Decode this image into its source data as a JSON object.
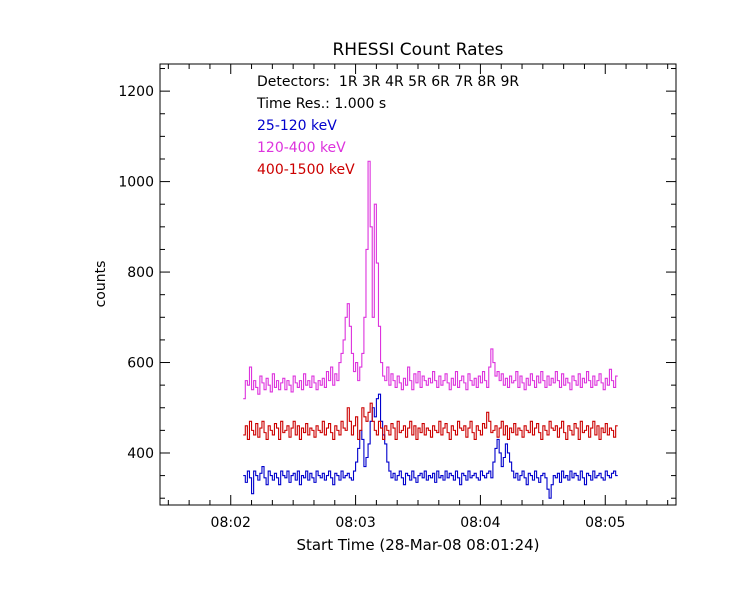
{
  "chart_data": {
    "type": "line",
    "title": "RHESSI Count Rates",
    "xlabel": "Start Time (28-Mar-08 08:01:24)",
    "ylabel": "counts",
    "x_ticks": [
      "08:02",
      "08:03",
      "08:04",
      "08:05"
    ],
    "y_ticks": [
      "400",
      "600",
      "800",
      "1000",
      "1200"
    ],
    "xlim_seconds_after_08_00": [
      86,
      334
    ],
    "ylim": [
      285,
      1260
    ],
    "grid": false,
    "legend_position": "top-left",
    "legend": [
      {
        "text": "Detectors:  1R 3R 4R 5R 6R 7R 8R 9R",
        "color": "#000000"
      },
      {
        "text": "Time Res.: 1.000 s",
        "color": "#000000"
      },
      {
        "text": "25-120 keV",
        "color": "#0000cc"
      },
      {
        "text": "120-400 keV",
        "color": "#dd33dd"
      },
      {
        "text": "400-1500 keV",
        "color": "#cc0000"
      }
    ],
    "series": [
      {
        "name": "25-120 keV",
        "color": "#0000cc",
        "x_start": 126,
        "x_step": 1.0,
        "values": [
          350,
          335,
          360,
          345,
          310,
          360,
          350,
          340,
          355,
          370,
          345,
          330,
          360,
          350,
          340,
          355,
          345,
          330,
          360,
          350,
          345,
          360,
          335,
          350,
          355,
          340,
          360,
          330,
          350,
          345,
          360,
          340,
          355,
          345,
          335,
          360,
          350,
          345,
          355,
          340,
          350,
          360,
          345,
          330,
          355,
          350,
          340,
          360,
          345,
          350,
          355,
          345,
          340,
          360,
          380,
          410,
          450,
          430,
          370,
          390,
          420,
          470,
          500,
          480,
          520,
          530,
          470,
          440,
          420,
          380,
          360,
          345,
          355,
          340,
          350,
          360,
          345,
          330,
          355,
          350,
          340,
          360,
          345,
          335,
          350,
          355,
          345,
          360,
          340,
          350,
          345,
          355,
          335,
          360,
          345,
          350,
          340,
          360,
          345,
          355,
          350,
          340,
          360,
          345,
          330,
          355,
          350,
          340,
          360,
          345,
          350,
          355,
          345,
          340,
          360,
          350,
          345,
          355,
          360,
          345,
          380,
          410,
          430,
          400,
          370,
          390,
          420,
          400,
          380,
          360,
          345,
          355,
          340,
          350,
          360,
          345,
          330,
          355,
          350,
          340,
          360,
          345,
          335,
          350,
          355,
          345,
          320,
          300,
          330,
          350,
          345,
          355,
          335,
          360,
          345,
          350,
          340,
          360,
          345,
          355,
          350,
          340,
          360,
          345,
          330,
          355,
          350,
          340,
          360,
          345,
          350,
          355,
          345,
          340,
          360,
          350,
          345,
          355,
          360,
          350
        ]
      },
      {
        "name": "120-400 keV",
        "color": "#dd33dd",
        "x_start": 126,
        "x_step": 1.0,
        "values": [
          520,
          560,
          550,
          590,
          540,
          560,
          545,
          530,
          570,
          555,
          540,
          565,
          550,
          535,
          575,
          545,
          560,
          540,
          555,
          565,
          540,
          560,
          550,
          535,
          570,
          555,
          545,
          560,
          540,
          575,
          550,
          560,
          545,
          570,
          555,
          540,
          560,
          550,
          565,
          545,
          580,
          560,
          590,
          550,
          575,
          560,
          600,
          620,
          650,
          700,
          730,
          680,
          620,
          580,
          600,
          560,
          590,
          620,
          700,
          850,
          1045,
          900,
          700,
          950,
          820,
          680,
          600,
          570,
          560,
          590,
          550,
          575,
          560,
          545,
          570,
          555,
          540,
          565,
          550,
          590,
          560,
          540,
          575,
          555,
          580,
          545,
          570,
          560,
          550,
          565,
          555,
          580,
          560,
          545,
          570,
          550,
          560,
          575,
          555,
          540,
          565,
          550,
          580,
          545,
          560,
          570,
          555,
          540,
          575,
          560,
          550,
          565,
          545,
          570,
          555,
          580,
          560,
          545,
          590,
          630,
          600,
          570,
          580,
          560,
          575,
          550,
          565,
          545,
          570,
          555,
          560,
          580,
          545,
          570,
          555,
          540,
          565,
          550,
          575,
          560,
          545,
          570,
          555,
          580,
          560,
          545,
          570,
          550,
          565,
          555,
          580,
          560,
          545,
          575,
          550,
          565,
          555,
          540,
          570,
          560,
          550,
          575,
          545,
          565,
          555,
          580,
          560,
          545,
          570,
          550,
          560,
          575,
          555,
          540,
          565,
          550,
          585,
          560,
          545,
          570
        ]
      },
      {
        "name": "400-1500 keV",
        "color": "#cc0000",
        "x_start": 126,
        "x_step": 1.0,
        "values": [
          440,
          460,
          430,
          470,
          450,
          440,
          465,
          435,
          455,
          470,
          445,
          430,
          460,
          450,
          440,
          465,
          455,
          430,
          470,
          445,
          450,
          460,
          435,
          455,
          470,
          440,
          460,
          430,
          455,
          445,
          465,
          440,
          455,
          450,
          435,
          460,
          450,
          445,
          470,
          440,
          455,
          465,
          445,
          430,
          460,
          450,
          440,
          470,
          455,
          450,
          500,
          470,
          440,
          460,
          480,
          430,
          450,
          500,
          480,
          470,
          490,
          510,
          470,
          450,
          440,
          470,
          455,
          430,
          460,
          450,
          440,
          465,
          455,
          430,
          470,
          445,
          450,
          460,
          435,
          455,
          470,
          440,
          460,
          430,
          455,
          445,
          465,
          440,
          455,
          450,
          435,
          460,
          450,
          445,
          470,
          440,
          455,
          465,
          445,
          430,
          460,
          450,
          440,
          470,
          455,
          450,
          460,
          435,
          455,
          470,
          445,
          430,
          460,
          450,
          440,
          465,
          455,
          490,
          470,
          445,
          450,
          460,
          435,
          455,
          470,
          440,
          460,
          430,
          455,
          445,
          465,
          440,
          455,
          450,
          435,
          460,
          450,
          445,
          470,
          440,
          455,
          465,
          445,
          430,
          460,
          450,
          440,
          470,
          455,
          450,
          460,
          435,
          455,
          470,
          445,
          430,
          460,
          450,
          440,
          465,
          455,
          430,
          470,
          445,
          450,
          460,
          435,
          455,
          470,
          440,
          460,
          430,
          455,
          445,
          465,
          440,
          455,
          450,
          435,
          460
        ]
      }
    ]
  }
}
